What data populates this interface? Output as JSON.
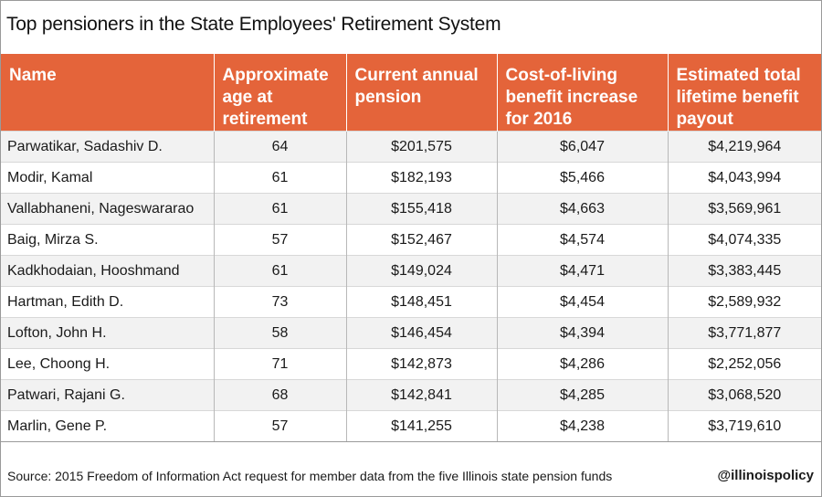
{
  "chart_data": {
    "type": "table",
    "title": "Top pensioners in the State Employees' Retirement System",
    "columns": [
      "Name",
      "Approximate age at retirement",
      "Current annual pension",
      "Cost-of-living benefit increase for 2016",
      "Estimated total lifetime benefit payout"
    ],
    "rows": [
      [
        "Parwatikar, Sadashiv D.",
        "64",
        "$201,575",
        "$6,047",
        "$4,219,964"
      ],
      [
        "Modir, Kamal",
        "61",
        "$182,193",
        "$5,466",
        "$4,043,994"
      ],
      [
        "Vallabhaneni, Nageswararao",
        "61",
        "$155,418",
        "$4,663",
        "$3,569,961"
      ],
      [
        "Baig, Mirza S.",
        "57",
        "$152,467",
        "$4,574",
        "$4,074,335"
      ],
      [
        "Kadkhodaian, Hooshmand",
        "61",
        "$149,024",
        "$4,471",
        "$3,383,445"
      ],
      [
        "Hartman, Edith D.",
        "73",
        "$148,451",
        "$4,454",
        "$2,589,932"
      ],
      [
        "Lofton, John H.",
        "58",
        "$146,454",
        "$4,394",
        "$3,771,877"
      ],
      [
        "Lee, Choong H.",
        "71",
        "$142,873",
        "$4,286",
        "$2,252,056"
      ],
      [
        "Patwari, Rajani G.",
        "68",
        "$142,841",
        "$4,285",
        "$3,068,520"
      ],
      [
        "Marlin, Gene P.",
        "57",
        "$141,255",
        "$4,238",
        "$3,719,610"
      ]
    ],
    "source": "Source: 2015 Freedom of Information Act request for member data from the five Illinois state pension funds",
    "credit": "@illinoispolicy"
  },
  "colors": {
    "header_background": "#e4643a",
    "header_text": "#ffffff",
    "stripe_row": "#f2f2f2"
  }
}
